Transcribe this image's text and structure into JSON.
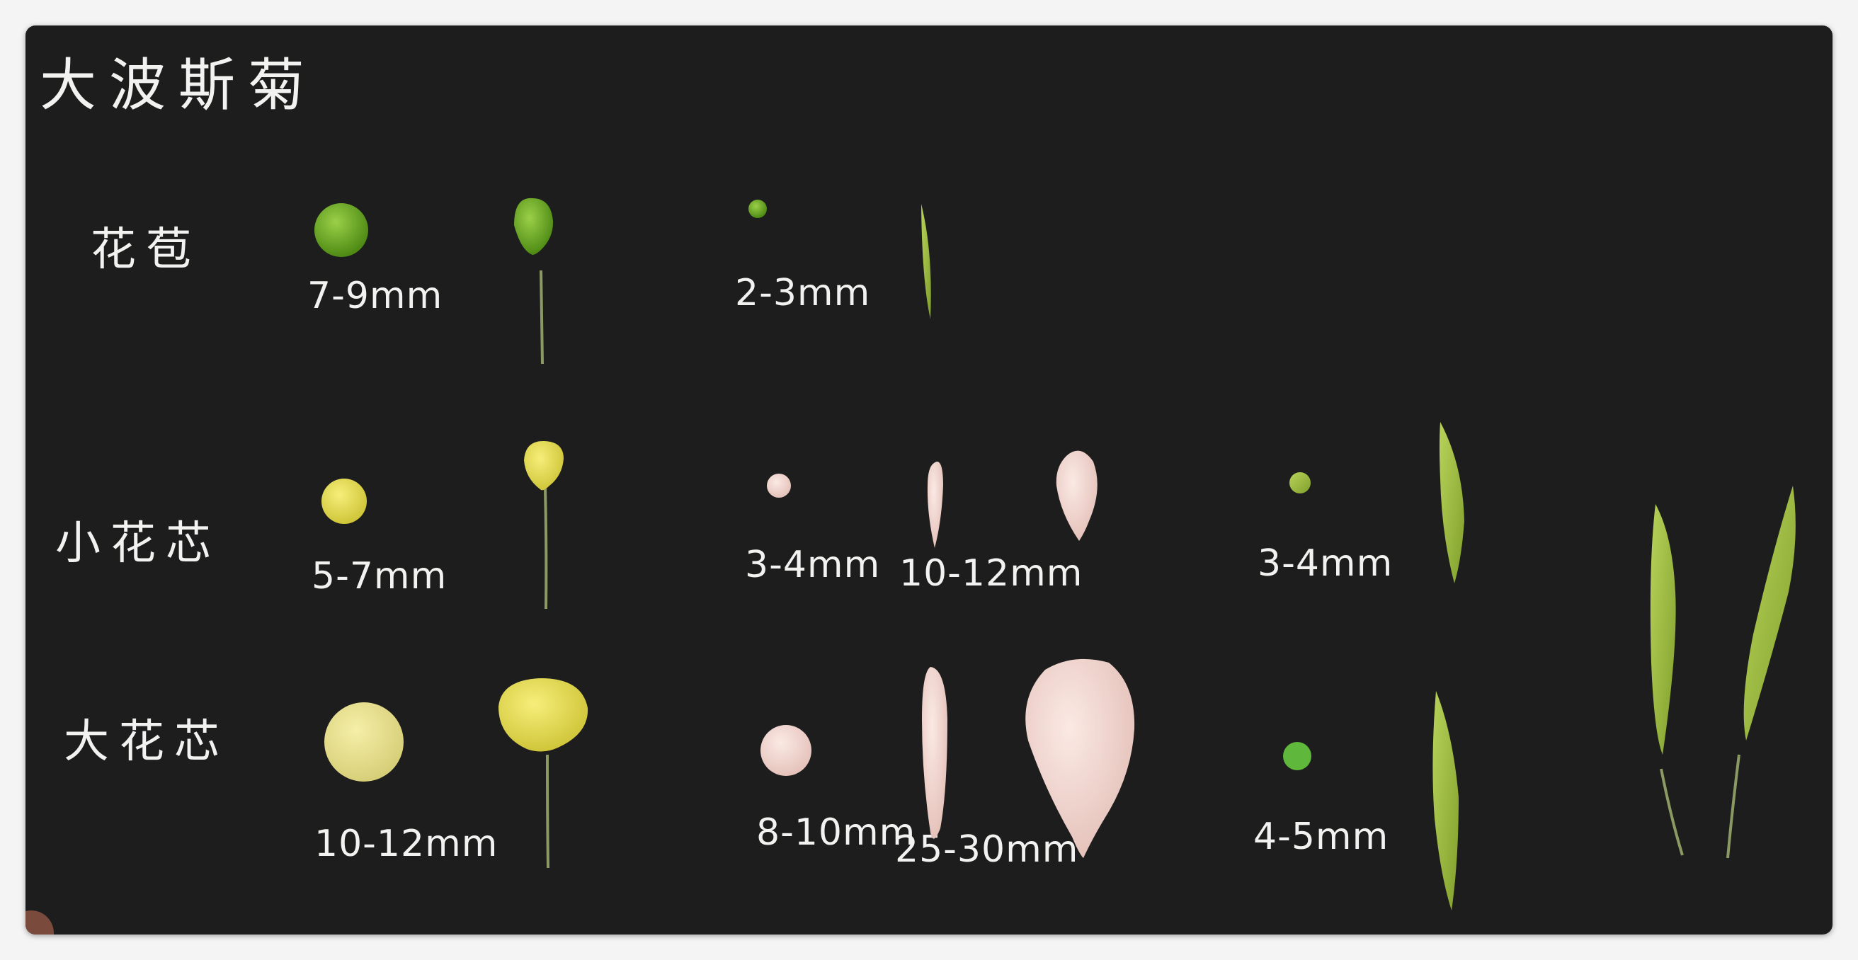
{
  "board": {
    "title": "大波斯菊",
    "rows": [
      {
        "label": "花苞",
        "sizes": [
          "7-9mm",
          "2-3mm"
        ]
      },
      {
        "label": "小花芯",
        "sizes": [
          "5-7mm",
          "3-4mm",
          "10-12mm",
          "3-4mm"
        ]
      },
      {
        "label": "大花芯",
        "sizes": [
          "10-12mm",
          "8-10mm",
          "25-30mm",
          "4-5mm"
        ]
      }
    ]
  },
  "colors": {
    "board": "#1e1d1e",
    "chalk": "#f2f2f0",
    "bud_green": "#6fa020",
    "core_yellow": "#e4dc55",
    "core_pale": "#e6df88",
    "petal_pink": "#f3d7d2",
    "leaf_green": "#9bb844"
  }
}
